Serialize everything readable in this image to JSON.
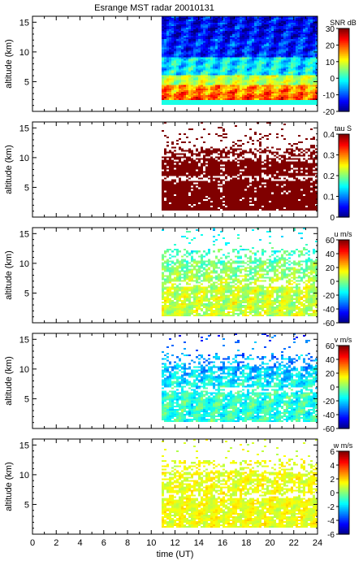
{
  "title": "Esrange MST radar 20010131",
  "chart_data": [
    {
      "type": "heatmap",
      "title": "Esrange MST radar 20010131",
      "ylabel": "altitude (km)",
      "xlabel": "",
      "xlim": [
        0,
        24
      ],
      "ylim": [
        0,
        16
      ],
      "yticks": [
        5,
        10,
        15
      ],
      "xticks": [
        0,
        2,
        4,
        6,
        8,
        10,
        12,
        14,
        16,
        18,
        20,
        22,
        24
      ],
      "data_start_time": 10.8,
      "colorbar": {
        "label": "SNR dB",
        "min": -20,
        "max": 30,
        "ticks": [
          -20,
          -10,
          0,
          10,
          20,
          30
        ]
      },
      "field": "snr"
    },
    {
      "type": "heatmap",
      "ylabel": "altitude (km)",
      "xlim": [
        0,
        24
      ],
      "ylim": [
        0,
        16
      ],
      "yticks": [
        5,
        10,
        15
      ],
      "xticks": [
        0,
        2,
        4,
        6,
        8,
        10,
        12,
        14,
        16,
        18,
        20,
        22,
        24
      ],
      "data_start_time": 10.8,
      "colorbar": {
        "label": "tau S",
        "min": 0,
        "max": 0.4,
        "ticks": [
          0,
          0.1,
          0.2,
          0.3,
          0.4
        ]
      },
      "field": "tau"
    },
    {
      "type": "heatmap",
      "ylabel": "altitude (km)",
      "xlim": [
        0,
        24
      ],
      "ylim": [
        0,
        16
      ],
      "yticks": [
        5,
        10,
        15
      ],
      "xticks": [
        0,
        2,
        4,
        6,
        8,
        10,
        12,
        14,
        16,
        18,
        20,
        22,
        24
      ],
      "data_start_time": 10.8,
      "colorbar": {
        "label": "u m/s",
        "min": -60,
        "max": 60,
        "ticks": [
          -60,
          -40,
          -20,
          0,
          20,
          40,
          60
        ]
      },
      "field": "u"
    },
    {
      "type": "heatmap",
      "ylabel": "altitude (km)",
      "xlim": [
        0,
        24
      ],
      "ylim": [
        0,
        16
      ],
      "yticks": [
        5,
        10,
        15
      ],
      "xticks": [
        0,
        2,
        4,
        6,
        8,
        10,
        12,
        14,
        16,
        18,
        20,
        22,
        24
      ],
      "data_start_time": 10.8,
      "colorbar": {
        "label": "v m/s",
        "min": -60,
        "max": 60,
        "ticks": [
          -60,
          -40,
          -20,
          0,
          20,
          40,
          60
        ]
      },
      "field": "v"
    },
    {
      "type": "heatmap",
      "ylabel": "altitude (km)",
      "xlabel": "time (UT)",
      "xlim": [
        0,
        24
      ],
      "ylim": [
        0,
        16
      ],
      "yticks": [
        5,
        10,
        15
      ],
      "xticks": [
        0,
        2,
        4,
        6,
        8,
        10,
        12,
        14,
        16,
        18,
        20,
        22,
        24
      ],
      "data_start_time": 10.8,
      "colorbar": {
        "label": "w m/s",
        "min": -6,
        "max": 6,
        "ticks": [
          -6,
          -4,
          -2,
          0,
          2,
          4,
          6
        ]
      },
      "field": "w"
    }
  ]
}
